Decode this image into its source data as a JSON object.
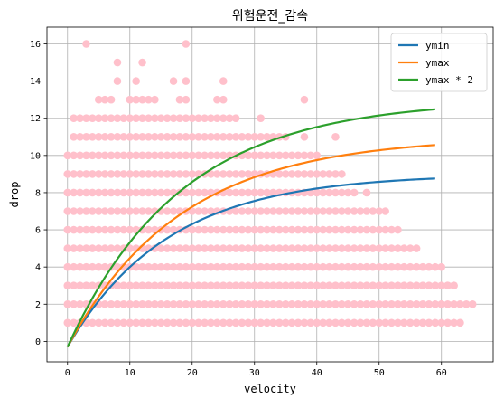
{
  "chart_data": {
    "type": "scatter",
    "title": "위험운전_감속",
    "xlabel": "velocity",
    "ylabel": "drop",
    "xlim": [
      -3.3,
      68.3
    ],
    "ylim": [
      -1.1,
      16.9
    ],
    "xticks": [
      "0",
      "10",
      "20",
      "30",
      "40",
      "50",
      "60"
    ],
    "yticks": [
      "0",
      "2",
      "4",
      "6",
      "8",
      "10",
      "12",
      "14",
      "16"
    ],
    "grid": true,
    "legend_position": "top-right",
    "scatter": {
      "color": "#ffc0cb",
      "rows": [
        {
          "y": 1,
          "x_min": 0,
          "x_max": 63
        },
        {
          "y": 2,
          "x_min": 0,
          "x_max": 65
        },
        {
          "y": 3,
          "x_min": 0,
          "x_max": 62
        },
        {
          "y": 4,
          "x_min": 0,
          "x_max": 59
        },
        {
          "y": 5,
          "x_min": 0,
          "x_max": 56
        },
        {
          "y": 6,
          "x_min": 0,
          "x_max": 53
        },
        {
          "y": 7,
          "x_min": 0,
          "x_max": 51
        },
        {
          "y": 8,
          "x_min": 0,
          "x_max": 46
        },
        {
          "y": 9,
          "x_min": 0,
          "x_max": 44
        },
        {
          "y": 10,
          "x_min": 0,
          "x_max": 39
        },
        {
          "y": 11,
          "x_min": 1,
          "x_max": 35
        },
        {
          "y": 12,
          "x_min": 1,
          "x_max": 27
        }
      ],
      "extra_points": [
        {
          "x": 60,
          "y": 4
        },
        {
          "x": 62,
          "y": 3
        },
        {
          "x": 61,
          "y": 3
        },
        {
          "x": 60,
          "y": 2
        },
        {
          "x": 48,
          "y": 8
        },
        {
          "x": 40,
          "y": 10
        },
        {
          "x": 38,
          "y": 11
        },
        {
          "x": 43,
          "y": 11
        },
        {
          "x": 31,
          "y": 12
        },
        {
          "x": 38,
          "y": 13
        },
        {
          "x": 5,
          "y": 13
        },
        {
          "x": 6,
          "y": 13
        },
        {
          "x": 7,
          "y": 13
        },
        {
          "x": 10,
          "y": 13
        },
        {
          "x": 11,
          "y": 13
        },
        {
          "x": 12,
          "y": 13
        },
        {
          "x": 13,
          "y": 13
        },
        {
          "x": 14,
          "y": 13
        },
        {
          "x": 18,
          "y": 13
        },
        {
          "x": 19,
          "y": 13
        },
        {
          "x": 24,
          "y": 13
        },
        {
          "x": 25,
          "y": 13
        },
        {
          "x": 8,
          "y": 14
        },
        {
          "x": 11,
          "y": 14
        },
        {
          "x": 17,
          "y": 14
        },
        {
          "x": 19,
          "y": 14
        },
        {
          "x": 25,
          "y": 14
        },
        {
          "x": 8,
          "y": 15
        },
        {
          "x": 12,
          "y": 15
        },
        {
          "x": 3,
          "y": 16
        },
        {
          "x": 19,
          "y": 16
        }
      ]
    },
    "series": [
      {
        "name": "ymin",
        "color": "#1f77b4",
        "amplitude": 9.3,
        "offset": -0.3,
        "rate": 0.062,
        "x_range": [
          0,
          59
        ]
      },
      {
        "name": "ymax",
        "color": "#ff7f0e",
        "amplitude": 11.3,
        "offset": -0.3,
        "rate": 0.055,
        "x_range": [
          0,
          59
        ]
      },
      {
        "name": "ymax * 2",
        "color": "#2ca02c",
        "amplitude": 13.3,
        "offset": -0.3,
        "rate": 0.055,
        "x_range": [
          0,
          59
        ]
      }
    ]
  }
}
